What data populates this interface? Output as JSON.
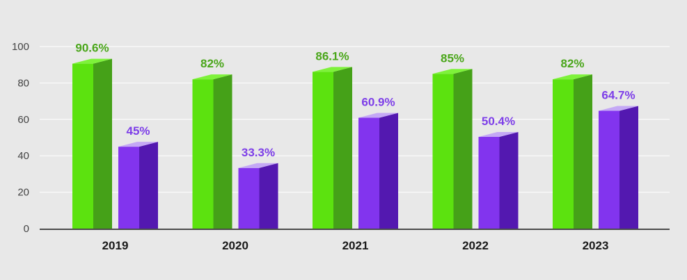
{
  "chart_data": {
    "type": "bar",
    "style": "3d-column",
    "categories": [
      "2019",
      "2020",
      "2021",
      "2022",
      "2023"
    ],
    "series": [
      {
        "values": [
          90.6,
          82,
          86.1,
          85,
          82
        ],
        "labels": [
          "90.6%",
          "82%",
          "86.1%",
          "85%",
          "82%"
        ],
        "color_front": "#5ce20f",
        "color_side": "#45a118",
        "color_top": "#7ef23a",
        "label_color": "#4aa61a"
      },
      {
        "values": [
          45,
          33.3,
          60.9,
          50.4,
          64.7
        ],
        "labels": [
          "45%",
          "33.3%",
          "60.9%",
          "50.4%",
          "64.7%"
        ],
        "color_front": "#8234ee",
        "color_side": "#5318b0",
        "color_top": "#c4a8f5",
        "label_color": "#7d3ee8"
      }
    ],
    "yticks": [
      "0",
      "20",
      "40",
      "60",
      "80",
      "100"
    ],
    "ylim": [
      0,
      100
    ],
    "grid": true,
    "legend": "none"
  }
}
